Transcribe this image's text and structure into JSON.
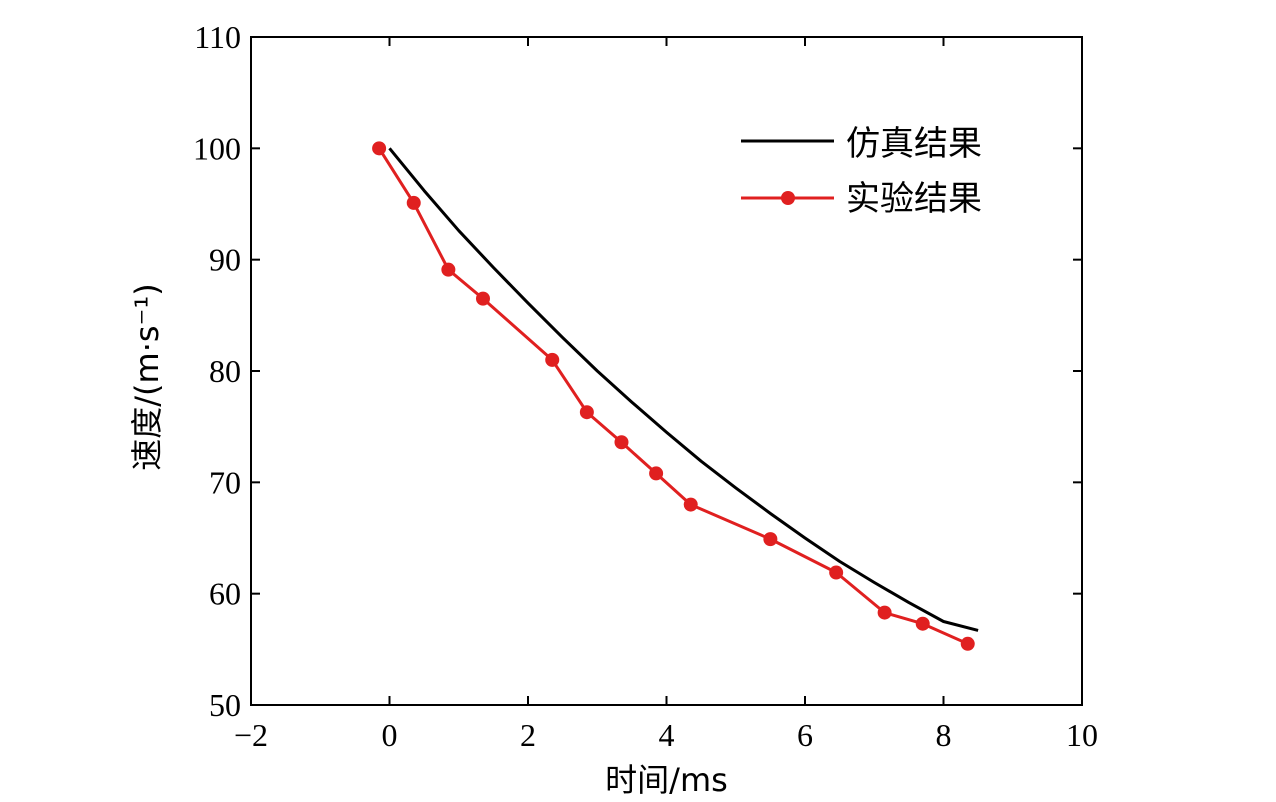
{
  "chart_data": {
    "type": "line",
    "xlabel": "时间/ms",
    "ylabel": "速度/(m·s⁻¹)",
    "xlim": [
      -2,
      10
    ],
    "ylim": [
      50,
      110
    ],
    "x_ticks": [
      -2,
      0,
      2,
      4,
      6,
      8,
      10
    ],
    "y_ticks": [
      50,
      60,
      70,
      80,
      90,
      100,
      110
    ],
    "x_tick_labels": [
      "−2",
      "0",
      "2",
      "4",
      "6",
      "8",
      "10"
    ],
    "y_tick_labels": [
      "50",
      "60",
      "70",
      "80",
      "90",
      "100",
      "110"
    ],
    "grid": false,
    "legend_position": "top-right",
    "series": [
      {
        "name": "仿真结果",
        "color": "#000000",
        "marker": "none",
        "points": [
          [
            0.0,
            100.0
          ],
          [
            0.5,
            96.2
          ],
          [
            1.0,
            92.6
          ],
          [
            1.5,
            89.3
          ],
          [
            2.0,
            86.1
          ],
          [
            2.5,
            83.0
          ],
          [
            3.0,
            80.0
          ],
          [
            3.5,
            77.2
          ],
          [
            4.0,
            74.5
          ],
          [
            4.5,
            71.9
          ],
          [
            5.0,
            69.5
          ],
          [
            5.5,
            67.2
          ],
          [
            6.0,
            65.0
          ],
          [
            6.5,
            62.9
          ],
          [
            7.0,
            61.0
          ],
          [
            7.5,
            59.2
          ],
          [
            8.0,
            57.5
          ],
          [
            8.5,
            56.7
          ]
        ]
      },
      {
        "name": "实验结果",
        "color": "#e02020",
        "marker": "circle",
        "points": [
          [
            -0.15,
            100.0
          ],
          [
            0.35,
            95.1
          ],
          [
            0.85,
            89.1
          ],
          [
            1.35,
            86.5
          ],
          [
            2.35,
            81.0
          ],
          [
            2.85,
            76.3
          ],
          [
            3.35,
            73.6
          ],
          [
            3.85,
            70.8
          ],
          [
            4.35,
            68.0
          ],
          [
            5.5,
            64.9
          ],
          [
            6.45,
            61.9
          ],
          [
            7.15,
            58.3
          ],
          [
            7.7,
            57.3
          ],
          [
            8.35,
            55.5
          ]
        ]
      }
    ]
  }
}
